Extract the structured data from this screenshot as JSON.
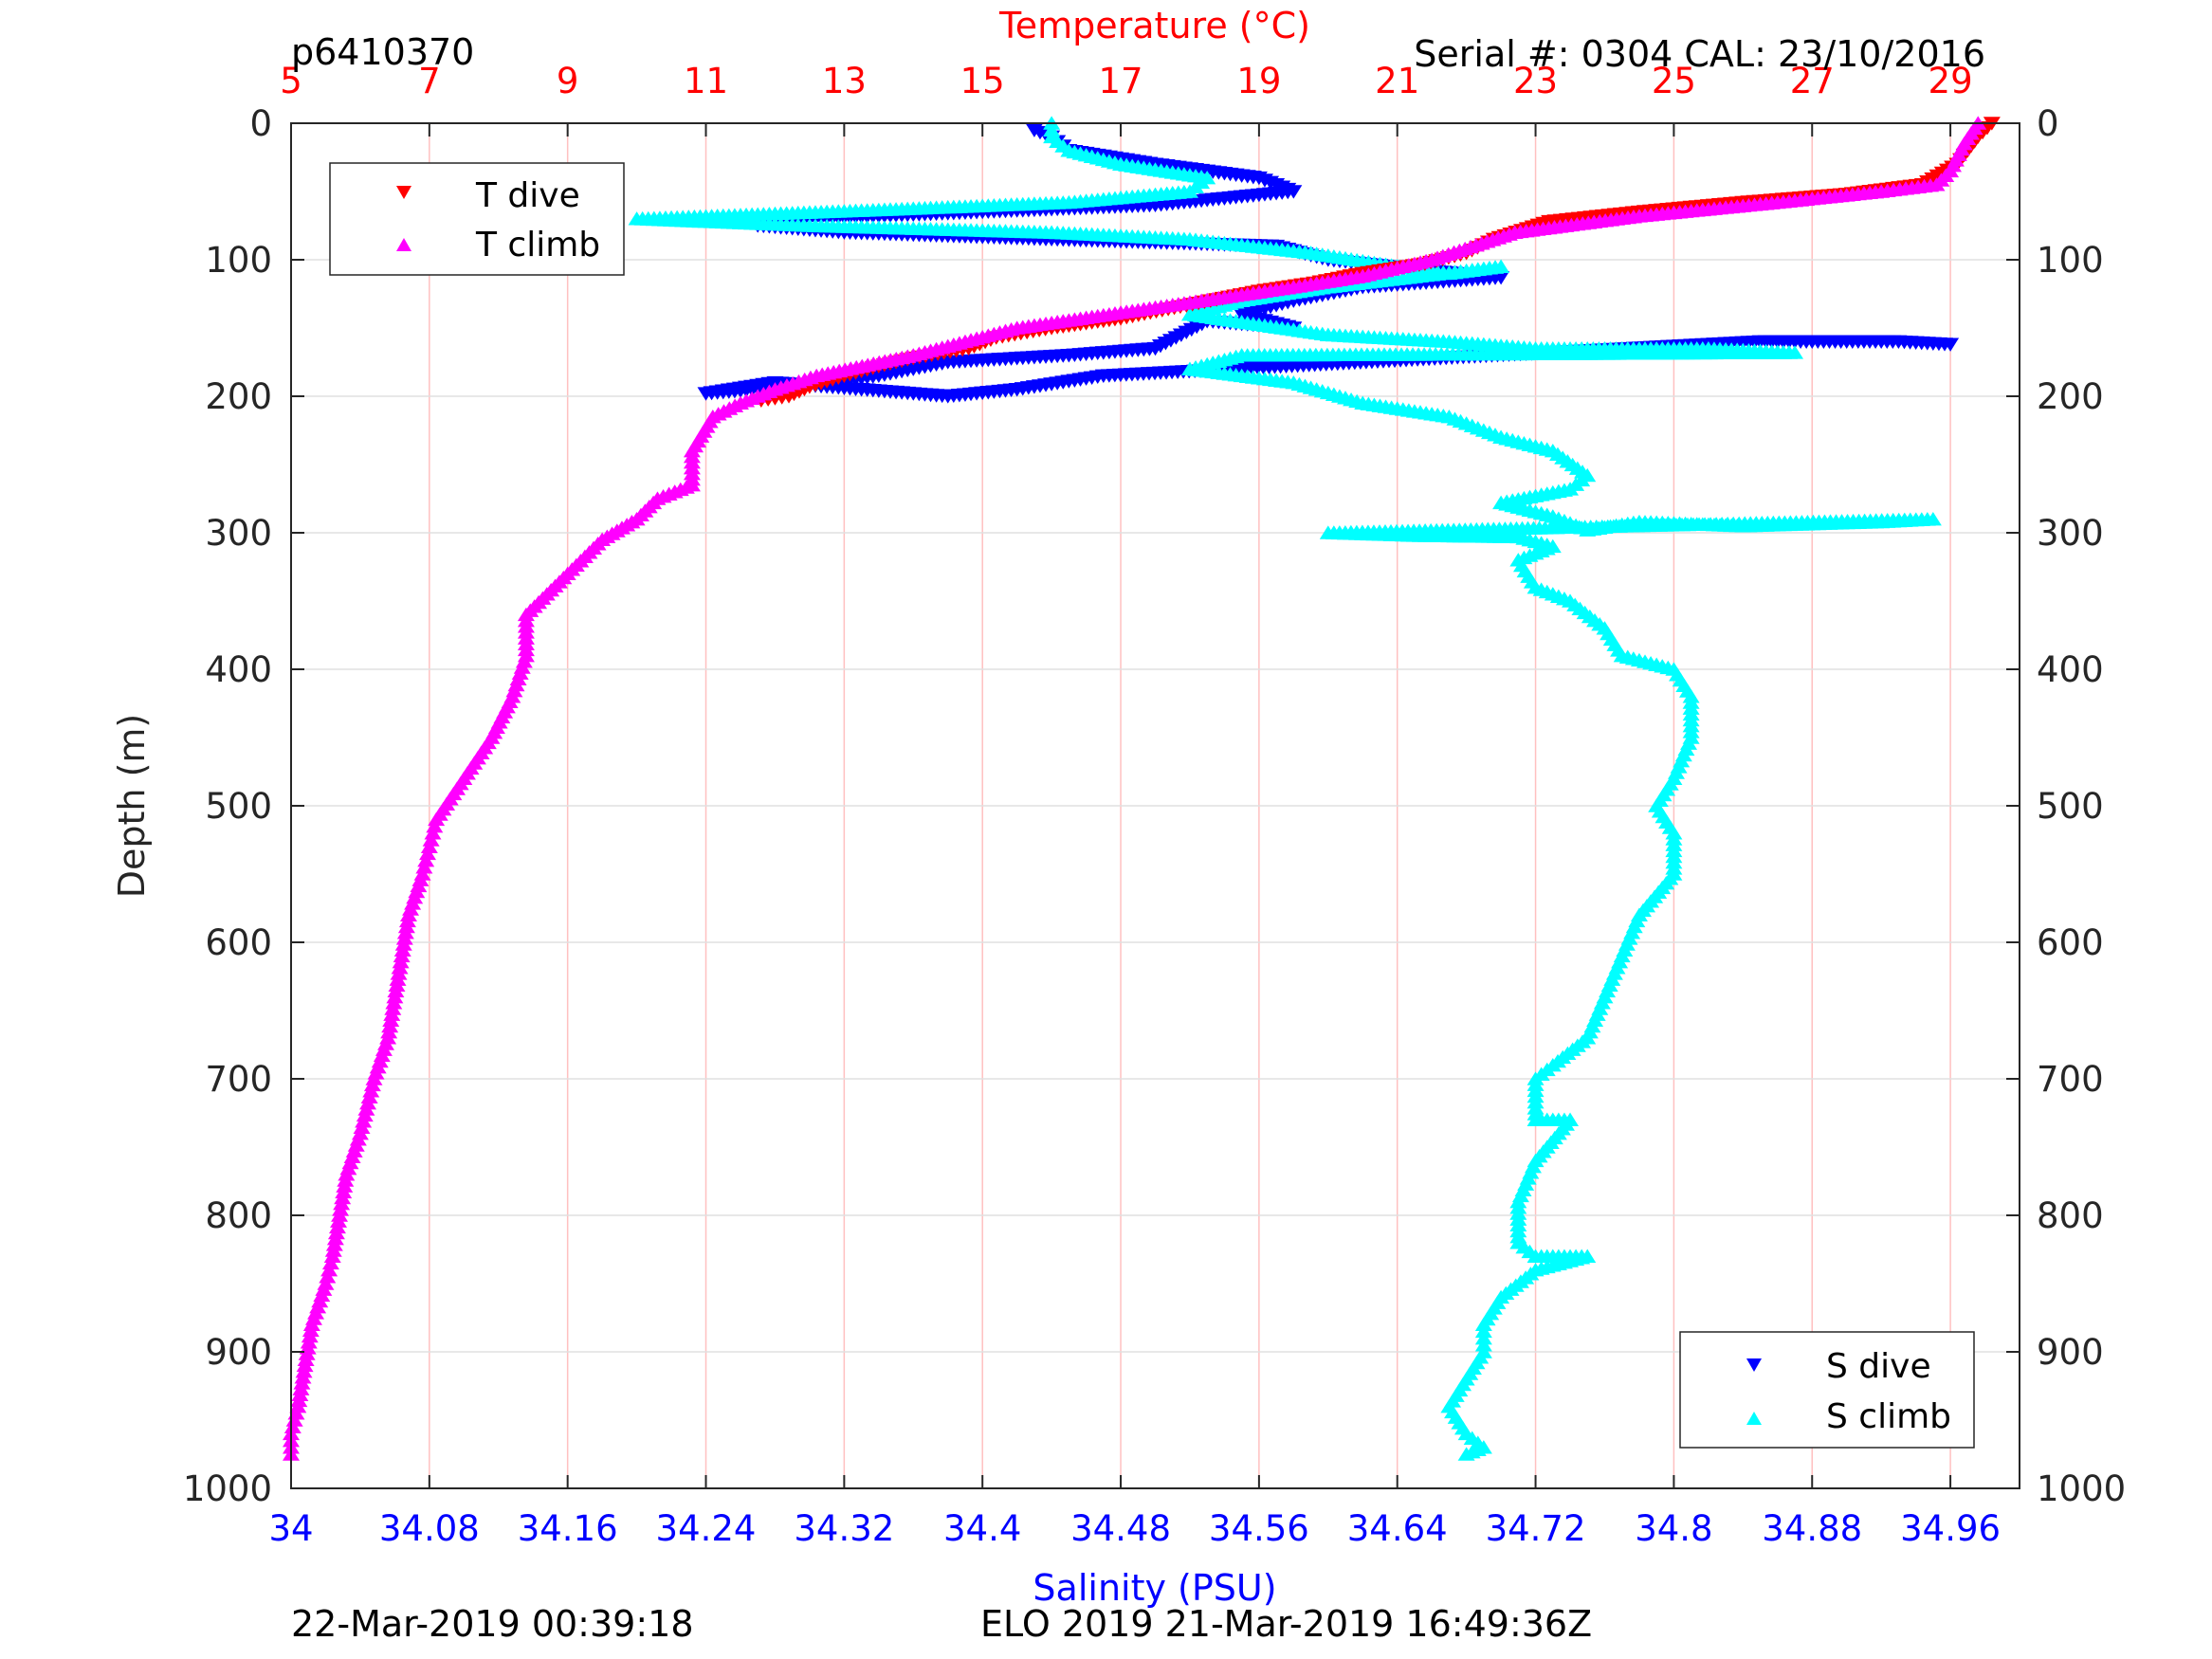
{
  "header": {
    "profile_id": "p6410370",
    "serial": "Serial #: 0304  CAL: 23/10/2016"
  },
  "footer": {
    "left": "22-Mar-2019 00:39:18",
    "center": "ELO 2019 21-Mar-2019 16:49:36Z"
  },
  "colors": {
    "temperature_axis": "#ff0000",
    "salinity_axis": "#0000ff",
    "t_dive": "#ff0000",
    "t_climb": "#ff00ff",
    "s_dive": "#0000ff",
    "s_climb": "#00ffff",
    "temp_grid": "#ffc0c0",
    "depth_grid": "#e0e0e0"
  },
  "chart_data": {
    "type": "scatter",
    "title": "",
    "ylabel": "Depth (m)",
    "ylim": [
      0,
      1000
    ],
    "y_reversed": true,
    "yticks": [
      "0",
      "100",
      "200",
      "300",
      "400",
      "500",
      "600",
      "700",
      "800",
      "900",
      "1000"
    ],
    "temperature_axis": {
      "label": "Temperature (°C)",
      "position": "top",
      "range": [
        5,
        30
      ],
      "ticks": [
        "5",
        "7",
        "9",
        "11",
        "13",
        "15",
        "17",
        "19",
        "21",
        "23",
        "25",
        "27",
        "29"
      ]
    },
    "salinity_axis": {
      "label": "Salinity (PSU)",
      "position": "bottom",
      "range": [
        34,
        35
      ],
      "ticks": [
        "34",
        "34.08",
        "34.16",
        "34.24",
        "34.32",
        "34.4",
        "34.48",
        "34.56",
        "34.64",
        "34.72",
        "34.8",
        "34.88",
        "34.96"
      ]
    },
    "grid": true,
    "legends": [
      {
        "position": "top-left",
        "entries": [
          "T dive",
          "T climb"
        ]
      },
      {
        "position": "bottom-right",
        "entries": [
          "S dive",
          "S climb"
        ]
      }
    ],
    "series": [
      {
        "name": "T dive",
        "axis": "temperature",
        "marker": "triangle-down",
        "points": [
          [
            29.6,
            0
          ],
          [
            29.4,
            10
          ],
          [
            29.1,
            30
          ],
          [
            28.6,
            45
          ],
          [
            27.5,
            52
          ],
          [
            26.0,
            58
          ],
          [
            24.5,
            65
          ],
          [
            23.2,
            72
          ],
          [
            22.4,
            85
          ],
          [
            22.0,
            95
          ],
          [
            21.4,
            103
          ],
          [
            20.5,
            110
          ],
          [
            19.8,
            117
          ],
          [
            19.0,
            123
          ],
          [
            18.3,
            130
          ],
          [
            17.6,
            137
          ],
          [
            17.0,
            143
          ],
          [
            16.0,
            150
          ],
          [
            15.2,
            157
          ],
          [
            14.8,
            165
          ],
          [
            14.0,
            172
          ],
          [
            13.5,
            178
          ],
          [
            13.0,
            185
          ],
          [
            12.5,
            193
          ],
          [
            12.2,
            200
          ],
          [
            11.8,
            203
          ]
        ]
      },
      {
        "name": "T climb",
        "axis": "temperature",
        "marker": "triangle-up",
        "points": [
          [
            29.4,
            0
          ],
          [
            29.2,
            15
          ],
          [
            29.0,
            35
          ],
          [
            28.8,
            45
          ],
          [
            28.0,
            50
          ],
          [
            26.5,
            58
          ],
          [
            24.5,
            68
          ],
          [
            22.7,
            80
          ],
          [
            21.5,
            100
          ],
          [
            20.5,
            112
          ],
          [
            19.5,
            120
          ],
          [
            17.5,
            135
          ],
          [
            15.5,
            150
          ],
          [
            14.0,
            170
          ],
          [
            12.6,
            185
          ],
          [
            12.0,
            195
          ],
          [
            11.5,
            205
          ],
          [
            11.1,
            215
          ],
          [
            10.8,
            240
          ],
          [
            10.8,
            265
          ],
          [
            10.3,
            275
          ],
          [
            10.0,
            290
          ],
          [
            9.5,
            305
          ],
          [
            9.0,
            330
          ],
          [
            8.4,
            360
          ],
          [
            8.4,
            390
          ],
          [
            8.2,
            420
          ],
          [
            7.9,
            450
          ],
          [
            7.5,
            480
          ],
          [
            7.1,
            510
          ],
          [
            7.0,
            530
          ],
          [
            6.9,
            550
          ],
          [
            6.7,
            580
          ],
          [
            6.6,
            610
          ],
          [
            6.5,
            640
          ],
          [
            6.4,
            670
          ],
          [
            6.2,
            700
          ],
          [
            6.0,
            740
          ],
          [
            5.8,
            770
          ],
          [
            5.7,
            800
          ],
          [
            5.6,
            830
          ],
          [
            5.5,
            850
          ],
          [
            5.3,
            880
          ],
          [
            5.2,
            910
          ],
          [
            5.1,
            940
          ],
          [
            5.0,
            960
          ],
          [
            5.0,
            975
          ]
        ]
      },
      {
        "name": "S dive",
        "axis": "salinity",
        "marker": "triangle-down",
        "points": [
          [
            34.43,
            5
          ],
          [
            34.44,
            10
          ],
          [
            34.45,
            20
          ],
          [
            34.5,
            30
          ],
          [
            34.56,
            40
          ],
          [
            34.58,
            50
          ],
          [
            34.5,
            60
          ],
          [
            34.4,
            65
          ],
          [
            34.3,
            70
          ],
          [
            34.27,
            75
          ],
          [
            34.32,
            80
          ],
          [
            34.44,
            85
          ],
          [
            34.57,
            90
          ],
          [
            34.6,
            100
          ],
          [
            34.65,
            107
          ],
          [
            34.7,
            113
          ],
          [
            34.62,
            120
          ],
          [
            34.58,
            130
          ],
          [
            34.55,
            140
          ],
          [
            34.58,
            150
          ],
          [
            34.53,
            145
          ],
          [
            34.5,
            165
          ],
          [
            34.45,
            170
          ],
          [
            34.38,
            175
          ],
          [
            34.34,
            185
          ],
          [
            34.3,
            192
          ],
          [
            34.24,
            198
          ],
          [
            34.28,
            190
          ],
          [
            34.38,
            200
          ],
          [
            34.42,
            195
          ],
          [
            34.47,
            185
          ],
          [
            34.85,
            160
          ],
          [
            34.9,
            160
          ],
          [
            34.93,
            160
          ],
          [
            34.96,
            162
          ]
        ]
      },
      {
        "name": "S climb",
        "axis": "salinity",
        "marker": "triangle-up",
        "points": [
          [
            34.44,
            0
          ],
          [
            34.44,
            10
          ],
          [
            34.45,
            20
          ],
          [
            34.48,
            30
          ],
          [
            34.53,
            40
          ],
          [
            34.52,
            50
          ],
          [
            34.45,
            58
          ],
          [
            34.35,
            63
          ],
          [
            34.2,
            70
          ],
          [
            34.3,
            75
          ],
          [
            34.44,
            80
          ],
          [
            34.52,
            85
          ],
          [
            34.59,
            95
          ],
          [
            34.63,
            103
          ],
          [
            34.67,
            110
          ],
          [
            34.7,
            105
          ],
          [
            34.6,
            120
          ],
          [
            34.55,
            130
          ],
          [
            34.52,
            140
          ],
          [
            34.6,
            155
          ],
          [
            34.67,
            160
          ],
          [
            34.72,
            165
          ],
          [
            34.76,
            165
          ],
          [
            34.82,
            165
          ],
          [
            34.87,
            168
          ],
          [
            34.55,
            170
          ],
          [
            34.52,
            180
          ],
          [
            34.58,
            190
          ],
          [
            34.62,
            205
          ],
          [
            34.67,
            215
          ],
          [
            34.7,
            230
          ],
          [
            34.73,
            240
          ],
          [
            34.75,
            258
          ],
          [
            34.74,
            268
          ],
          [
            34.7,
            278
          ],
          [
            34.73,
            288
          ],
          [
            34.75,
            298
          ],
          [
            34.78,
            292
          ],
          [
            34.84,
            295
          ],
          [
            34.92,
            292
          ],
          [
            34.95,
            290
          ],
          [
            34.6,
            300
          ],
          [
            34.65,
            302
          ],
          [
            34.71,
            303
          ],
          [
            34.73,
            310
          ],
          [
            34.71,
            320
          ],
          [
            34.72,
            340
          ],
          [
            34.74,
            350
          ],
          [
            34.76,
            370
          ],
          [
            34.77,
            390
          ],
          [
            34.8,
            400
          ],
          [
            34.81,
            420
          ],
          [
            34.81,
            450
          ],
          [
            34.8,
            480
          ],
          [
            34.79,
            500
          ],
          [
            34.8,
            520
          ],
          [
            34.8,
            550
          ],
          [
            34.78,
            580
          ],
          [
            34.77,
            610
          ],
          [
            34.76,
            640
          ],
          [
            34.75,
            670
          ],
          [
            34.73,
            690
          ],
          [
            34.72,
            700
          ],
          [
            34.72,
            730
          ],
          [
            34.74,
            730
          ],
          [
            34.72,
            760
          ],
          [
            34.71,
            790
          ],
          [
            34.71,
            820
          ],
          [
            34.72,
            830
          ],
          [
            34.75,
            830
          ],
          [
            34.72,
            840
          ],
          [
            34.7,
            860
          ],
          [
            34.69,
            880
          ],
          [
            34.69,
            900
          ],
          [
            34.68,
            920
          ],
          [
            34.67,
            940
          ],
          [
            34.68,
            960
          ],
          [
            34.69,
            970
          ],
          [
            34.68,
            975
          ]
        ]
      }
    ]
  }
}
